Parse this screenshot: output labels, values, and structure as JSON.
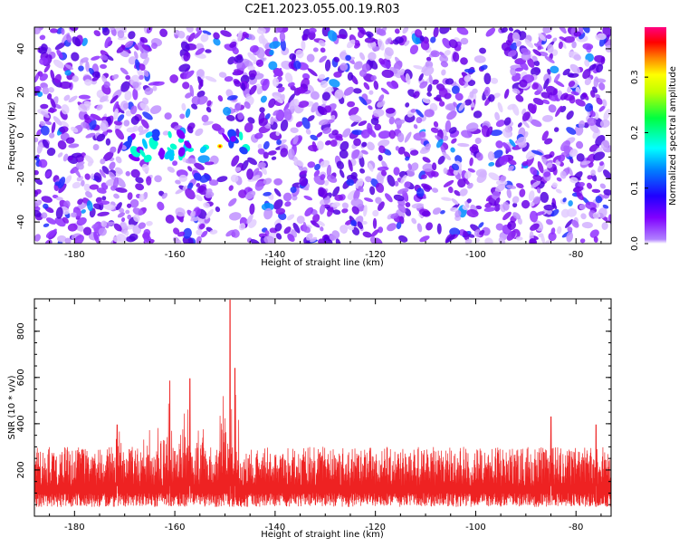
{
  "figure": {
    "title": "C2E1.2023.055.00.19.R03"
  },
  "chart_data": [
    {
      "type": "heatmap",
      "xlabel": "Height of straight line (km)",
      "ylabel": "Frequency (Hz)",
      "xlim": [
        -188,
        -73
      ],
      "ylim": [
        -50,
        50
      ],
      "x_ticks": [
        -180,
        -160,
        -140,
        -120,
        -100,
        -80
      ],
      "y_ticks": [
        -40,
        -20,
        0,
        20,
        40
      ],
      "colorbar": {
        "label": "Normalized spectral amplitude",
        "range": [
          0,
          0.39
        ],
        "ticks": [
          0.0,
          0.1,
          0.2,
          0.3
        ],
        "colormap": [
          "#ffffff",
          "#8000ff",
          "#0000ff",
          "#00ffff",
          "#00ff00",
          "#ffff00",
          "#ff8000",
          "#ff0000",
          "#ff0080"
        ]
      },
      "features": [
        {
          "description_x": [
            -170,
            -145
          ],
          "frequency_hz": -5,
          "peak_amplitude": 0.33
        }
      ],
      "grid": false
    },
    {
      "type": "line",
      "xlabel": "Height of straight line (km)",
      "ylabel": "SNR (10 * v/v)",
      "xlim": [
        -188,
        -73
      ],
      "ylim": [
        0,
        940
      ],
      "x_ticks": [
        -180,
        -160,
        -140,
        -120,
        -100,
        -80
      ],
      "y_ticks": [
        200,
        400,
        600,
        800
      ],
      "series": [
        {
          "color": "#ee2222",
          "baseline": 130,
          "noise_band": [
            40,
            300
          ],
          "envelope_peaks": [
            {
              "x": -171.5,
              "y": 395
            },
            {
              "x": -161,
              "y": 585
            },
            {
              "x": -157,
              "y": 595
            },
            {
              "x": -149,
              "y": 935
            },
            {
              "x": -148,
              "y": 640
            },
            {
              "x": -85,
              "y": 430
            },
            {
              "x": -76,
              "y": 395
            }
          ]
        }
      ],
      "grid": false
    }
  ]
}
